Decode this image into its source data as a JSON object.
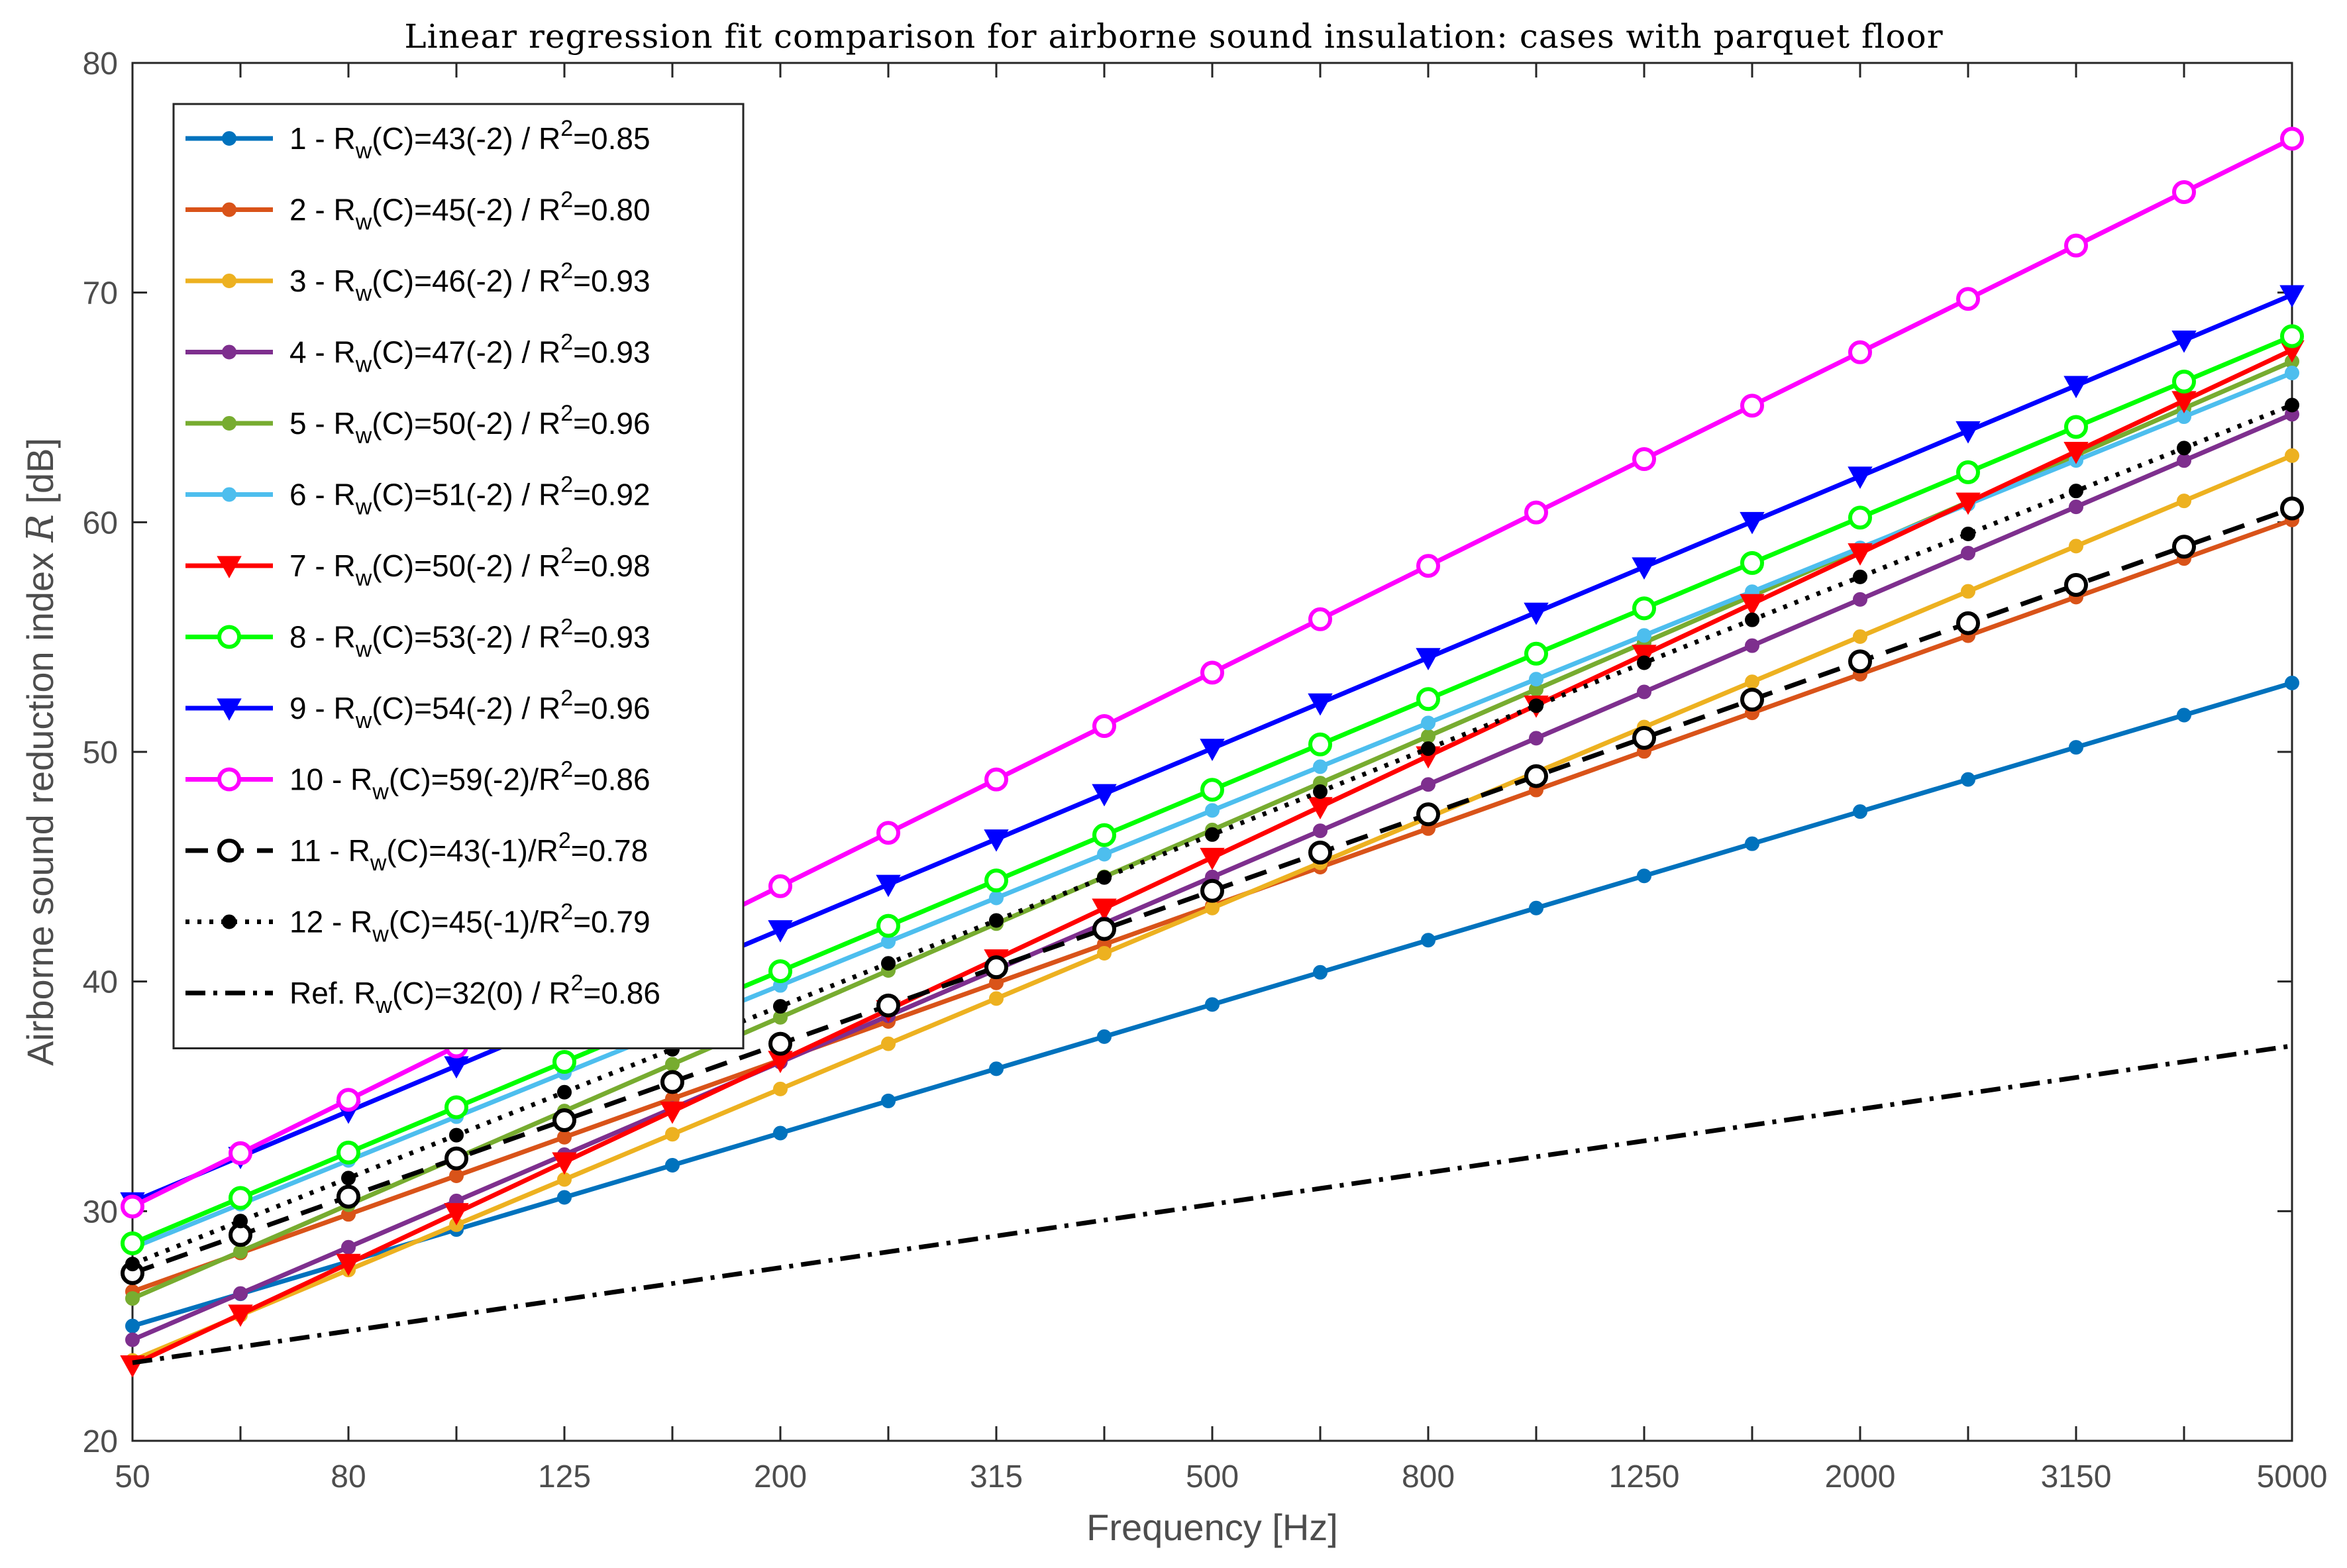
{
  "chart_data": {
    "type": "line",
    "title": "Linear regression fit comparison for airborne sound insulation: cases with parquet floor",
    "xlabel": "Frequency [Hz]",
    "ylabel": "Airborne sound reduction index R [dB]",
    "x": [
      50,
      63,
      80,
      100,
      125,
      160,
      200,
      250,
      315,
      400,
      500,
      630,
      800,
      1000,
      1250,
      1600,
      2000,
      2500,
      3150,
      4000,
      5000
    ],
    "x_tick_labels": [
      "50",
      "80",
      "125",
      "200",
      "315",
      "500",
      "800",
      "1250",
      "2000",
      "3150",
      "5000"
    ],
    "xscale": "band index (1/3-octave)",
    "ylim": [
      20,
      80
    ],
    "y_ticks": [
      20,
      30,
      40,
      50,
      60,
      70,
      80
    ],
    "grid": false,
    "legend_position": "top-left",
    "series": [
      {
        "name": "1 - Rw(C)=43(-2) / R2=0.85",
        "legend": {
          "prefix": "1 - R",
          "sub": "w",
          "mid": "(C)=43(-2) / R",
          "sup": "2",
          "suffix": "=0.85"
        },
        "color": "#0072BD",
        "marker": "dot",
        "dash": "solid",
        "start": 25.0,
        "end": 53.0
      },
      {
        "name": "2 - Rw(C)=45(-2) / R2=0.80",
        "legend": {
          "prefix": "2 - R",
          "sub": "w",
          "mid": "(C)=45(-2) / R",
          "sup": "2",
          "suffix": "=0.80"
        },
        "color": "#D95319",
        "marker": "dot",
        "dash": "solid",
        "start": 26.5,
        "end": 60.1
      },
      {
        "name": "3 - Rw(C)=46(-2) / R2=0.93",
        "legend": {
          "prefix": "3 - R",
          "sub": "w",
          "mid": "(C)=46(-2) / R",
          "sup": "2",
          "suffix": "=0.93"
        },
        "color": "#EDB120",
        "marker": "dot",
        "dash": "solid",
        "start": 23.5,
        "end": 62.9
      },
      {
        "name": "4 - Rw(C)=47(-2) / R2=0.93",
        "legend": {
          "prefix": "4 - R",
          "sub": "w",
          "mid": "(C)=47(-2) / R",
          "sup": "2",
          "suffix": "=0.93"
        },
        "color": "#7E2F8E",
        "marker": "dot",
        "dash": "solid",
        "start": 24.4,
        "end": 64.7
      },
      {
        "name": "5 - Rw(C)=50(-2) / R2=0.96",
        "legend": {
          "prefix": "5 - R",
          "sub": "w",
          "mid": "(C)=50(-2) / R",
          "sup": "2",
          "suffix": "=0.96"
        },
        "color": "#77AC30",
        "marker": "dot",
        "dash": "solid",
        "start": 26.2,
        "end": 67.0
      },
      {
        "name": "6 - Rw(C)=51(-2) / R2=0.92",
        "legend": {
          "prefix": "6 - R",
          "sub": "w",
          "mid": "(C)=51(-2) / R",
          "sup": "2",
          "suffix": "=0.92"
        },
        "color": "#4DBEEE",
        "marker": "dot",
        "dash": "solid",
        "start": 28.4,
        "end": 66.5
      },
      {
        "name": "7 - Rw(C)=50(-2) / R2=0.98",
        "legend": {
          "prefix": "7 - R",
          "sub": "w",
          "mid": "(C)=50(-2) / R",
          "sup": "2",
          "suffix": "=0.98"
        },
        "color": "#FF0000",
        "marker": "triangle-down",
        "dash": "solid",
        "start": 23.3,
        "end": 67.5
      },
      {
        "name": "8 - Rw(C)=53(-2) / R2=0.93",
        "legend": {
          "prefix": "8 - R",
          "sub": "w",
          "mid": "(C)=53(-2) / R",
          "sup": "2",
          "suffix": "=0.93"
        },
        "color": "#00FF00",
        "marker": "circle-open",
        "dash": "solid",
        "start": 28.6,
        "end": 68.1
      },
      {
        "name": "9 - Rw(C)=54(-2) / R2=0.96",
        "legend": {
          "prefix": "9 - R",
          "sub": "w",
          "mid": "(C)=54(-2) / R",
          "sup": "2",
          "suffix": "=0.96"
        },
        "color": "#0000FF",
        "marker": "triangle-down",
        "dash": "solid",
        "start": 30.4,
        "end": 69.9
      },
      {
        "name": "10 - Rw(C)=59(-2)/R2=0.86",
        "legend": {
          "prefix": "10 - R",
          "sub": "w",
          "mid": "(C)=59(-2)/R",
          "sup": "2",
          "suffix": "=0.86"
        },
        "color": "#FF00FF",
        "marker": "circle-open",
        "dash": "solid",
        "start": 30.2,
        "end": 76.7
      },
      {
        "name": "11 - Rw(C)=43(-1)/R2=0.78",
        "legend": {
          "prefix": "11 - R",
          "sub": "w",
          "mid": "(C)=43(-1)/R",
          "sup": "2",
          "suffix": "=0.78"
        },
        "color": "#000000",
        "marker": "circle-open",
        "dash": "dashed",
        "start": 27.3,
        "end": 60.6
      },
      {
        "name": "12 - Rw(C)=45(-1)/R2=0.79",
        "legend": {
          "prefix": "12 - R",
          "sub": "w",
          "mid": "(C)=45(-1)/R",
          "sup": "2",
          "suffix": "=0.79"
        },
        "color": "#000000",
        "marker": "dot-black",
        "dash": "dotted",
        "start": 27.7,
        "end": 65.1
      },
      {
        "name": "Ref. Rw(C)=32(0) / R2=0.86",
        "legend": {
          "prefix": "Ref. R",
          "sub": "w",
          "mid": "(C)=32(0) / R",
          "sup": "2",
          "suffix": "=0.86"
        },
        "color": "#000000",
        "marker": "none",
        "dash": "dashdot",
        "start": 23.4,
        "end": 37.2
      }
    ]
  }
}
